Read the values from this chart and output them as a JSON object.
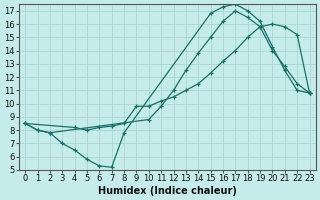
{
  "xlabel": "Humidex (Indice chaleur)",
  "xlim": [
    -0.5,
    23.5
  ],
  "ylim": [
    5,
    17.5
  ],
  "xticks": [
    0,
    1,
    2,
    3,
    4,
    5,
    6,
    7,
    8,
    9,
    10,
    11,
    12,
    13,
    14,
    15,
    16,
    17,
    18,
    19,
    20,
    21,
    22,
    23
  ],
  "yticks": [
    5,
    6,
    7,
    8,
    9,
    10,
    11,
    12,
    13,
    14,
    15,
    16,
    17
  ],
  "bg_color": "#c5ecea",
  "grid_color": "#aad6d4",
  "line_color": "#1a7068",
  "line1_x": [
    0,
    1,
    2,
    3,
    4,
    5,
    6,
    7,
    8,
    15,
    16,
    17,
    18,
    19,
    20,
    21,
    22,
    23
  ],
  "line1_y": [
    8.5,
    8.0,
    7.8,
    7.0,
    6.5,
    5.8,
    5.3,
    5.2,
    7.8,
    16.8,
    17.3,
    17.5,
    17.0,
    16.2,
    14.3,
    12.5,
    11.0,
    10.8
  ],
  "line2_x": [
    0,
    1,
    2,
    10,
    11,
    12,
    13,
    14,
    15,
    16,
    17,
    18,
    19,
    20,
    21,
    22,
    23
  ],
  "line2_y": [
    8.5,
    8.0,
    7.8,
    8.8,
    9.8,
    11.0,
    12.5,
    13.8,
    15.0,
    16.2,
    17.0,
    16.5,
    15.8,
    14.0,
    12.8,
    11.5,
    10.8
  ],
  "line3_x": [
    0,
    4,
    5,
    6,
    7,
    8,
    9,
    10,
    11,
    12,
    13,
    14,
    15,
    16,
    17,
    18,
    19,
    20,
    21,
    22,
    23
  ],
  "line3_y": [
    8.5,
    8.2,
    8.0,
    8.2,
    8.3,
    8.5,
    9.8,
    9.8,
    10.2,
    10.5,
    11.0,
    11.5,
    12.3,
    13.2,
    14.0,
    15.0,
    15.8,
    16.0,
    15.8,
    15.2,
    10.8
  ]
}
